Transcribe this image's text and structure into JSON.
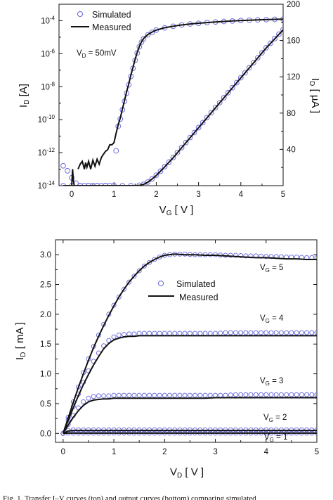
{
  "chart_data": [
    {
      "type": "scatter",
      "x_label": {
        "main": "V",
        "sub": "G",
        "unit": " [ V ]"
      },
      "y_label_left": {
        "main": "I",
        "sub": "D",
        "unit": " [A]"
      },
      "y_label_right": {
        "main": "I",
        "sub": "D",
        "unit": " [ µA ]"
      },
      "xlim": [
        -0.3,
        5
      ],
      "ylim_left_log10": [
        -14,
        -3
      ],
      "ylim_right": [
        0,
        200
      ],
      "x_ticks": [
        "0",
        "1",
        "2",
        "3",
        "4",
        "5"
      ],
      "y_ticks_left": [
        {
          "base": "10",
          "exp": "-4"
        },
        {
          "base": "10",
          "exp": "-6"
        },
        {
          "base": "10",
          "exp": "-8"
        },
        {
          "base": "10",
          "exp": "-10"
        },
        {
          "base": "10",
          "exp": "-12"
        },
        {
          "base": "10",
          "exp": "-14"
        }
      ],
      "y_ticks_right": [
        "40",
        "80",
        "120",
        "160",
        "200"
      ],
      "legend": {
        "simulated": "Simulated",
        "measured": "Measured",
        "position": "top-left"
      },
      "annotation": {
        "main": "V",
        "sub": "D",
        "text": " = 50mV"
      },
      "series": [
        {
          "name": "Simulated",
          "axis": "left-log",
          "style": "open-circle",
          "x": [
            -0.2,
            -0.1,
            0,
            0.1,
            0.2,
            0.3,
            0.4,
            0.5,
            0.6,
            0.7,
            0.8,
            0.9,
            1.0,
            1.05,
            1.1,
            1.15,
            1.2,
            1.25,
            1.3,
            1.35,
            1.4,
            1.45,
            1.5,
            1.55,
            1.6,
            1.65,
            1.7,
            1.8,
            1.9,
            2.0,
            2.2,
            2.4,
            2.6,
            2.8,
            3.0,
            3.2,
            3.4,
            3.6,
            3.8,
            4.0,
            4.2,
            4.4,
            4.6,
            4.8,
            5.0
          ],
          "y": [
            1.6e-13,
            8e-14,
            3e-14,
            1.4e-14,
            1e-14,
            1e-14,
            1e-14,
            1e-14,
            1e-14,
            1e-14,
            1e-14,
            1e-14,
            1e-14,
            1.3e-12,
            4e-11,
            1.1e-10,
            4e-10,
            1.3e-09,
            4e-09,
            1.3e-08,
            4.2e-08,
            1.3e-07,
            4e-07,
            1.1e-06,
            2.6e-06,
            5e-06,
            8e-06,
            1.4e-05,
            2e-05,
            2.7e-05,
            3.7e-05,
            4.6e-05,
            5.5e-05,
            6.3e-05,
            7e-05,
            7.7e-05,
            8.4e-05,
            9e-05,
            9.6e-05,
            0.000102,
            0.000107,
            0.000112,
            0.000117,
            0.000121,
            0.000125
          ]
        },
        {
          "name": "Measured",
          "axis": "left-log",
          "style": "line",
          "segments": [
            {
              "x": [
                0.0,
                0.02,
                0.04,
                0.06
              ],
              "y": [
                1e-14,
                1e-13,
                2e-14,
                1e-14
              ]
            },
            {
              "x": [
                0.15,
                0.2,
                0.25,
                0.3,
                0.33,
                0.36,
                0.4,
                0.45,
                0.5,
                0.55,
                0.6,
                0.65,
                0.7,
                0.75,
                0.8,
                0.85,
                0.9,
                0.95,
                1.0,
                1.05,
                1.1,
                1.15,
                1.2,
                1.25,
                1.3,
                1.35,
                1.4,
                1.45,
                1.5,
                1.55,
                1.6,
                1.65,
                1.7,
                1.8,
                1.9,
                2.0,
                2.2,
                2.4,
                2.6,
                2.8,
                3.0,
                3.2,
                3.4,
                3.6,
                3.8,
                4.0,
                4.2,
                4.4,
                4.6,
                4.8,
                5.0
              ],
              "y": [
                1e-13,
                2e-13,
                3e-13,
                1e-13,
                2.5e-13,
                1.3e-13,
                3e-13,
                1e-13,
                3.5e-13,
                1.5e-13,
                4e-13,
                2e-13,
                5e-13,
                8e-13,
                1.2e-12,
                1.5e-12,
                3e-12,
                3e-12,
                4e-12,
                1.5e-11,
                5e-11,
                1.3e-10,
                4.5e-10,
                1.5e-09,
                5e-09,
                1.5e-08,
                5e-08,
                1.5e-07,
                4.5e-07,
                1.2e-06,
                2.8e-06,
                5.3e-06,
                8.3e-06,
                1.45e-05,
                2.05e-05,
                2.7e-05,
                3.75e-05,
                4.65e-05,
                5.55e-05,
                6.35e-05,
                7.05e-05,
                7.75e-05,
                8.45e-05,
                9.05e-05,
                9.65e-05,
                0.000102,
                0.000107,
                0.000112,
                0.000117,
                0.000121,
                0.000125
              ]
            }
          ]
        },
        {
          "name": "Simulated",
          "axis": "right-linear",
          "style": "open-circle",
          "x": [
            -0.2,
            0,
            0.2,
            0.4,
            0.6,
            0.8,
            1.0,
            1.2,
            1.4,
            1.6,
            1.7,
            1.8,
            1.9,
            2.0,
            2.1,
            2.2,
            2.3,
            2.4,
            2.5,
            2.6,
            2.7,
            2.8,
            2.9,
            3.0,
            3.1,
            3.2,
            3.3,
            3.4,
            3.5,
            3.6,
            3.7,
            3.8,
            3.9,
            4.0,
            4.1,
            4.2,
            4.3,
            4.4,
            4.5,
            4.6,
            4.7,
            4.8,
            4.9,
            5.0
          ],
          "y": [
            0,
            0,
            0,
            0,
            0,
            0,
            0,
            0,
            0,
            0.4,
            1.5,
            4,
            7.5,
            11.5,
            16,
            21,
            26,
            31,
            36.5,
            42,
            47.5,
            53,
            58.5,
            64,
            69.5,
            75,
            80.5,
            86,
            91.5,
            97,
            102.5,
            108,
            113.5,
            119,
            124.5,
            130,
            135.5,
            141,
            146.5,
            152,
            157,
            162,
            167,
            172
          ]
        },
        {
          "name": "Measured",
          "axis": "right-linear",
          "style": "line",
          "x": [
            -0.2,
            0,
            0.4,
            0.8,
            1.2,
            1.5,
            1.6,
            1.7,
            1.8,
            1.9,
            2.0,
            2.2,
            2.4,
            2.6,
            2.8,
            3.0,
            3.2,
            3.4,
            3.6,
            3.8,
            4.0,
            4.2,
            4.4,
            4.6,
            4.8,
            5.0
          ],
          "y": [
            0,
            0,
            0,
            0,
            0,
            0,
            0.3,
            1.4,
            3.8,
            7.3,
            11.2,
            20.8,
            30.8,
            41.8,
            52.8,
            63.8,
            74.8,
            85.8,
            96.8,
            107.8,
            118.8,
            129.8,
            140.8,
            151.8,
            161.8,
            171.8
          ]
        }
      ]
    },
    {
      "type": "line",
      "x_label": {
        "main": "V",
        "sub": "D",
        "unit": " [ V ]"
      },
      "y_label": {
        "main": "I",
        "sub": "D",
        "unit": " [ mA ]"
      },
      "xlim": [
        -0.15,
        5
      ],
      "ylim": [
        -0.15,
        3.25
      ],
      "x_ticks": [
        "0",
        "1",
        "2",
        "3",
        "4",
        "5"
      ],
      "y_ticks": [
        "0.0",
        "0.5",
        "1.0",
        "1.5",
        "2.0",
        "2.5",
        "3.0"
      ],
      "legend": {
        "simulated": "Simulated",
        "measured": "Measured",
        "position": "center"
      },
      "curve_labels": [
        {
          "main": "V",
          "sub": "G",
          "text": " = 5"
        },
        {
          "main": "V",
          "sub": "G",
          "text": " = 4"
        },
        {
          "main": "V",
          "sub": "G",
          "text": " = 3"
        },
        {
          "main": "V",
          "sub": "G",
          "text": " = 2"
        },
        {
          "main": "V",
          "sub": "G",
          "text": " = 1"
        }
      ],
      "x": [
        0,
        0.1,
        0.2,
        0.3,
        0.4,
        0.5,
        0.6,
        0.7,
        0.8,
        0.9,
        1.0,
        1.1,
        1.2,
        1.3,
        1.4,
        1.5,
        1.6,
        1.7,
        1.8,
        1.9,
        2.0,
        2.2,
        2.4,
        2.6,
        2.8,
        3.0,
        3.2,
        3.4,
        3.6,
        3.8,
        4.0,
        4.2,
        4.4,
        4.6,
        4.8,
        5.0
      ],
      "series": [
        {
          "name": "Measured",
          "vg": "5",
          "y": [
            0,
            0.26,
            0.52,
            0.77,
            1.0,
            1.23,
            1.44,
            1.63,
            1.81,
            1.98,
            2.14,
            2.29,
            2.42,
            2.54,
            2.64,
            2.73,
            2.81,
            2.87,
            2.92,
            2.96,
            2.99,
            3.01,
            3.0,
            3.0,
            2.99,
            2.99,
            2.98,
            2.97,
            2.96,
            2.95,
            2.95,
            2.94,
            2.93,
            2.93,
            2.92,
            2.92
          ]
        },
        {
          "name": "Simulated",
          "vg": "5",
          "y": [
            0,
            0.27,
            0.53,
            0.78,
            1.02,
            1.25,
            1.46,
            1.65,
            1.83,
            2.0,
            2.15,
            2.29,
            2.42,
            2.54,
            2.64,
            2.73,
            2.81,
            2.87,
            2.92,
            2.96,
            2.99,
            3.01,
            3.01,
            3.0,
            3.0,
            3.0,
            2.99,
            2.99,
            2.98,
            2.98,
            2.97,
            2.97,
            2.96,
            2.96,
            2.95,
            2.95
          ]
        },
        {
          "name": "Measured",
          "vg": "4",
          "y": [
            0,
            0.22,
            0.43,
            0.63,
            0.82,
            0.99,
            1.15,
            1.29,
            1.42,
            1.51,
            1.57,
            1.6,
            1.62,
            1.63,
            1.63,
            1.64,
            1.64,
            1.64,
            1.64,
            1.64,
            1.64,
            1.64,
            1.64,
            1.64,
            1.64,
            1.64,
            1.64,
            1.64,
            1.64,
            1.64,
            1.64,
            1.64,
            1.64,
            1.64,
            1.64,
            1.64
          ]
        },
        {
          "name": "Simulated",
          "vg": "4",
          "y": [
            0,
            0.23,
            0.45,
            0.66,
            0.86,
            1.05,
            1.21,
            1.35,
            1.47,
            1.56,
            1.62,
            1.65,
            1.66,
            1.67,
            1.67,
            1.68,
            1.68,
            1.68,
            1.68,
            1.68,
            1.68,
            1.68,
            1.68,
            1.68,
            1.68,
            1.68,
            1.69,
            1.69,
            1.69,
            1.69,
            1.69,
            1.69,
            1.69,
            1.69,
            1.69,
            1.69
          ]
        },
        {
          "name": "Measured",
          "vg": "3",
          "y": [
            0,
            0.14,
            0.27,
            0.38,
            0.47,
            0.53,
            0.56,
            0.57,
            0.58,
            0.58,
            0.59,
            0.59,
            0.59,
            0.59,
            0.59,
            0.59,
            0.59,
            0.59,
            0.59,
            0.59,
            0.59,
            0.59,
            0.59,
            0.59,
            0.59,
            0.6,
            0.6,
            0.6,
            0.6,
            0.6,
            0.6,
            0.6,
            0.6,
            0.6,
            0.6,
            0.6
          ]
        },
        {
          "name": "Simulated",
          "vg": "3",
          "y": [
            0,
            0.15,
            0.3,
            0.43,
            0.53,
            0.59,
            0.62,
            0.63,
            0.63,
            0.63,
            0.64,
            0.64,
            0.64,
            0.64,
            0.64,
            0.64,
            0.64,
            0.64,
            0.64,
            0.64,
            0.64,
            0.64,
            0.64,
            0.64,
            0.64,
            0.64,
            0.64,
            0.65,
            0.65,
            0.65,
            0.65,
            0.65,
            0.65,
            0.65,
            0.65,
            0.65
          ]
        },
        {
          "name": "Measured",
          "vg": "2",
          "y": [
            0,
            0.04,
            0.05,
            0.05,
            0.05,
            0.05,
            0.05,
            0.05,
            0.05,
            0.05,
            0.05,
            0.05,
            0.05,
            0.05,
            0.05,
            0.05,
            0.05,
            0.05,
            0.05,
            0.05,
            0.05,
            0.05,
            0.05,
            0.05,
            0.05,
            0.05,
            0.05,
            0.05,
            0.05,
            0.05,
            0.05,
            0.05,
            0.05,
            0.05,
            0.05,
            0.05
          ]
        },
        {
          "name": "Simulated",
          "vg": "2",
          "y": [
            0,
            0.05,
            0.06,
            0.06,
            0.06,
            0.06,
            0.06,
            0.06,
            0.06,
            0.06,
            0.06,
            0.06,
            0.06,
            0.06,
            0.06,
            0.06,
            0.06,
            0.06,
            0.06,
            0.06,
            0.06,
            0.06,
            0.06,
            0.06,
            0.06,
            0.06,
            0.06,
            0.06,
            0.06,
            0.06,
            0.06,
            0.06,
            0.06,
            0.06,
            0.06,
            0.06
          ]
        },
        {
          "name": "Measured",
          "vg": "1",
          "y": [
            0,
            0.005,
            0.005,
            0.005,
            0.005,
            0.005,
            0.005,
            0.005,
            0.005,
            0.005,
            0.005,
            0.005,
            0.005,
            0.005,
            0.005,
            0.005,
            0.005,
            0.005,
            0.005,
            0.005,
            0.005,
            0.005,
            0.005,
            0.005,
            0.005,
            0.005,
            0.005,
            0.005,
            0.005,
            0.005,
            0.005,
            0.005,
            0.005,
            0.005,
            0.005,
            0.005
          ]
        },
        {
          "name": "Simulated",
          "vg": "1",
          "y": [
            0,
            0.005,
            0.005,
            0.005,
            0.005,
            0.005,
            0.005,
            0.005,
            0.005,
            0.005,
            0.005,
            0.005,
            0.005,
            0.005,
            0.005,
            0.005,
            0.005,
            0.005,
            0.005,
            0.005,
            0.005,
            0.005,
            0.005,
            0.005,
            0.005,
            0.005,
            0.005,
            0.005,
            0.005,
            0.005,
            0.005,
            0.005,
            0.005,
            0.005,
            0.005,
            0.005
          ]
        }
      ]
    }
  ],
  "caption": "Fig. 1. Transfer I–V curves (top) and output curves (bottom) comparing simulated"
}
